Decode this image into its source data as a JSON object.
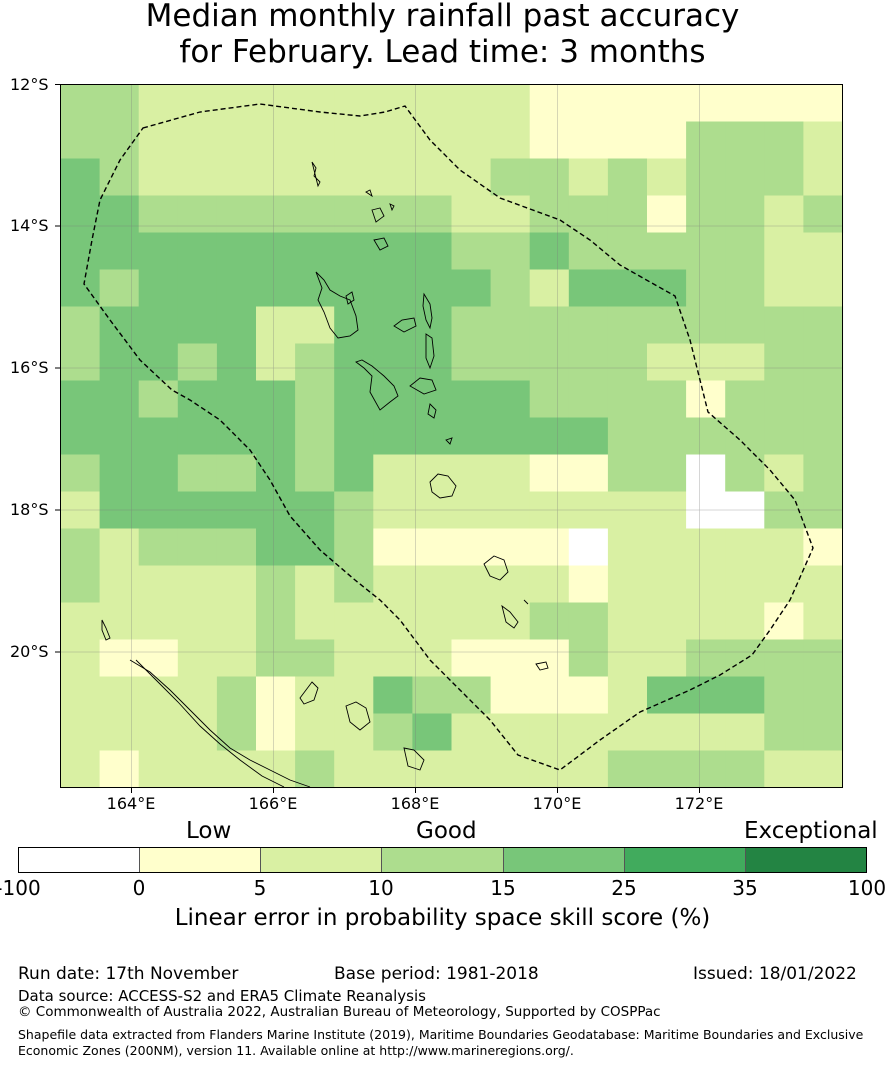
{
  "title_line1": "Median monthly rainfall past accuracy",
  "title_line2": "for February. Lead time: 3 months",
  "map": {
    "lat_labels": [
      "12°S",
      "14°S",
      "16°S",
      "18°S",
      "20°S"
    ],
    "lon_labels": [
      "164°E",
      "166°E",
      "168°E",
      "170°E",
      "172°E"
    ],
    "grid": [
      [
        3,
        3,
        2,
        2,
        2,
        2,
        2,
        2,
        2,
        2,
        2,
        2,
        1,
        1,
        1,
        1,
        1,
        1,
        1,
        1
      ],
      [
        3,
        3,
        2,
        2,
        2,
        2,
        2,
        2,
        2,
        2,
        2,
        2,
        1,
        1,
        1,
        1,
        3,
        3,
        3,
        2
      ],
      [
        4,
        3,
        2,
        2,
        2,
        2,
        2,
        2,
        2,
        2,
        2,
        3,
        3,
        2,
        3,
        2,
        3,
        3,
        3,
        2
      ],
      [
        4,
        4,
        3,
        3,
        3,
        3,
        3,
        3,
        3,
        3,
        2,
        2,
        3,
        3,
        3,
        1,
        3,
        3,
        2,
        3
      ],
      [
        4,
        4,
        4,
        4,
        4,
        4,
        4,
        4,
        4,
        4,
        3,
        3,
        4,
        3,
        3,
        3,
        3,
        3,
        2,
        2
      ],
      [
        4,
        3,
        4,
        4,
        4,
        4,
        4,
        4,
        4,
        4,
        4,
        3,
        2,
        4,
        4,
        4,
        3,
        3,
        2,
        2
      ],
      [
        3,
        4,
        4,
        4,
        4,
        2,
        2,
        4,
        4,
        4,
        3,
        3,
        3,
        3,
        3,
        3,
        3,
        3,
        3,
        3
      ],
      [
        3,
        4,
        4,
        3,
        4,
        2,
        3,
        4,
        4,
        4,
        3,
        3,
        3,
        3,
        3,
        2,
        2,
        2,
        3,
        3
      ],
      [
        4,
        4,
        3,
        4,
        4,
        4,
        3,
        4,
        4,
        4,
        4,
        4,
        3,
        3,
        3,
        3,
        1,
        3,
        3,
        3
      ],
      [
        4,
        4,
        4,
        4,
        4,
        4,
        3,
        4,
        4,
        4,
        4,
        4,
        4,
        4,
        3,
        3,
        3,
        3,
        3,
        3
      ],
      [
        3,
        4,
        4,
        3,
        3,
        4,
        3,
        4,
        2,
        2,
        2,
        2,
        1,
        1,
        3,
        3,
        0,
        3,
        2,
        3
      ],
      [
        2,
        4,
        4,
        4,
        4,
        4,
        4,
        3,
        2,
        2,
        2,
        2,
        2,
        2,
        2,
        2,
        0,
        0,
        3,
        3
      ],
      [
        3,
        2,
        3,
        3,
        3,
        4,
        4,
        3,
        1,
        1,
        1,
        1,
        1,
        0,
        2,
        2,
        2,
        2,
        2,
        1
      ],
      [
        3,
        2,
        2,
        2,
        2,
        3,
        2,
        3,
        2,
        2,
        2,
        2,
        2,
        1,
        2,
        2,
        2,
        2,
        2,
        2
      ],
      [
        2,
        2,
        2,
        2,
        2,
        3,
        2,
        2,
        2,
        2,
        2,
        2,
        3,
        3,
        2,
        2,
        2,
        2,
        1,
        2
      ],
      [
        2,
        1,
        1,
        2,
        2,
        3,
        3,
        2,
        2,
        2,
        1,
        1,
        1,
        3,
        2,
        2,
        3,
        3,
        3,
        3
      ],
      [
        2,
        2,
        2,
        2,
        3,
        1,
        2,
        2,
        4,
        3,
        3,
        1,
        1,
        1,
        2,
        4,
        4,
        4,
        3,
        3
      ],
      [
        2,
        2,
        2,
        2,
        3,
        1,
        2,
        2,
        3,
        4,
        2,
        2,
        2,
        2,
        2,
        2,
        2,
        2,
        3,
        3
      ],
      [
        2,
        1,
        2,
        2,
        2,
        2,
        3,
        2,
        2,
        2,
        2,
        2,
        2,
        2,
        3,
        3,
        3,
        3,
        2,
        2
      ]
    ]
  },
  "legend": {
    "colors": [
      "#ffffff",
      "#ffffcc",
      "#d9f0a3",
      "#addd8e",
      "#78c679",
      "#41ab5d",
      "#238443"
    ],
    "ticks": [
      "-100",
      "0",
      "5",
      "10",
      "15",
      "25",
      "35",
      "100"
    ],
    "categories": [
      "Low",
      "Good",
      "Exceptional"
    ],
    "title": "Linear error in probability space skill score (%)"
  },
  "footer": {
    "run_date": "Run date: 17th November",
    "base_period": "Base period: 1981-2018",
    "issued": "Issued: 18/01/2022",
    "data_source": "Data source: ACCESS-S2 and ERA5 Climate Reanalysis",
    "copyright": "© Commonwealth of Australia 2022, Australian Bureau of Meteorology, Supported by COSPPac",
    "shapefile_note": "Shapefile data extracted from Flanders Marine Institute (2019), Maritime Boundaries Geodatabase: Maritime Boundaries and Exclusive Economic Zones (200NM), version 11. Available online at http://www.marineregions.org/."
  }
}
